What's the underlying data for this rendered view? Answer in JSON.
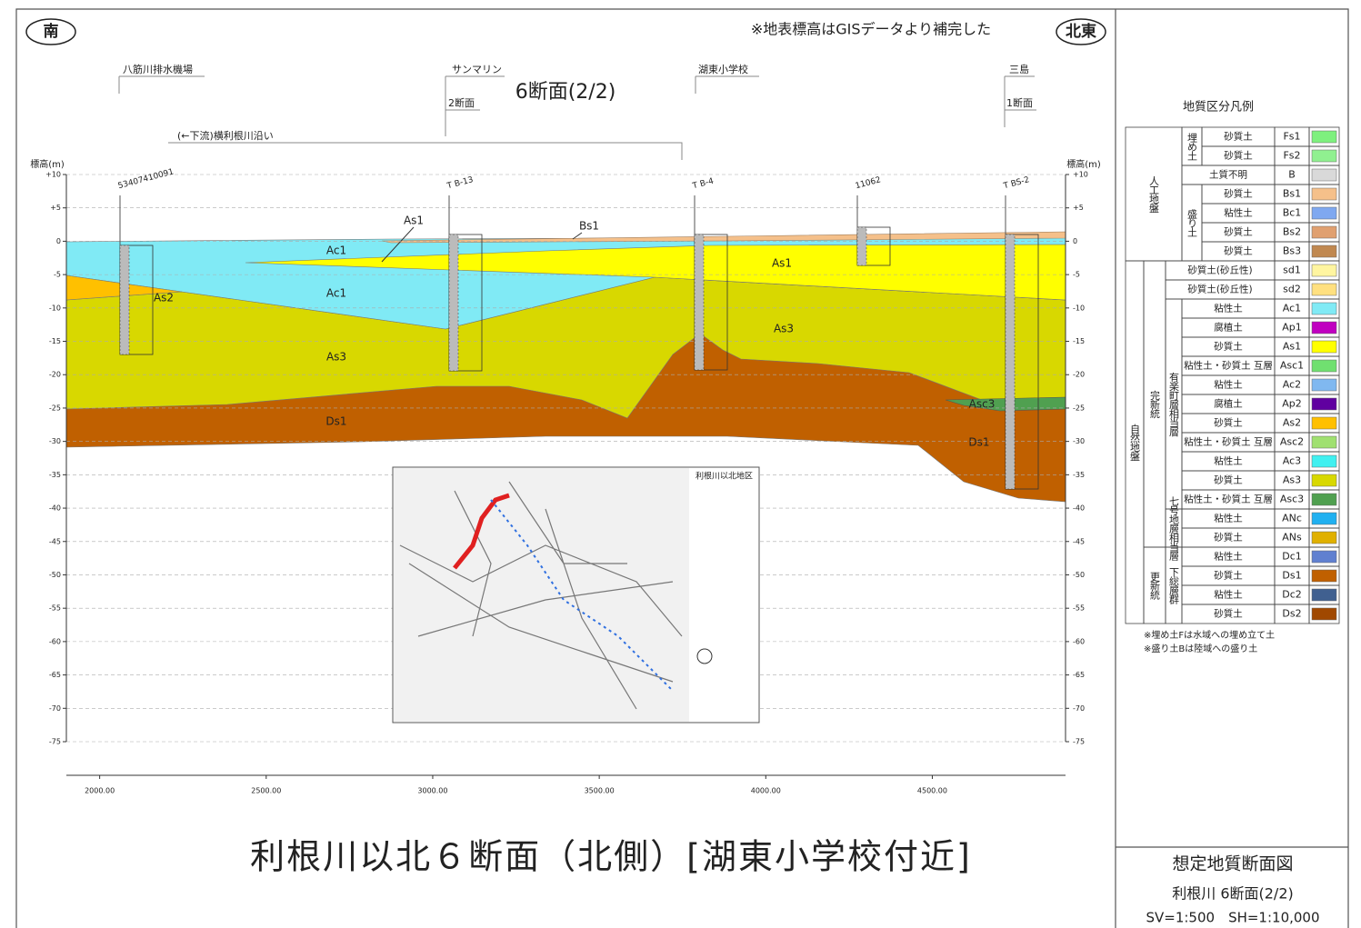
{
  "header": {
    "south": "南",
    "northeast": "北東",
    "note": "※地表標高はGISデータより補完した",
    "section": "6断面(2/2)"
  },
  "landmarks": [
    {
      "label": "八筋川排水機場"
    },
    {
      "label": "サンマリン",
      "sub": "2断面"
    },
    {
      "label": "湖東小学校"
    },
    {
      "label": "三島",
      "sub": "1断面"
    }
  ],
  "river_note": "(←下流)横利根川沿い",
  "axes": {
    "y_label": "標高(m)",
    "ylim": [
      -75,
      10
    ],
    "yticks": [
      {
        "value": 10,
        "label": "+10"
      },
      {
        "value": 5,
        "label": "+5"
      },
      0,
      -5,
      -10,
      -15,
      -20,
      -25,
      -30,
      -35,
      -40,
      -45,
      -50,
      -55,
      -60,
      -65,
      -70,
      -75
    ],
    "xlim": [
      1900,
      4900
    ],
    "xticks": [
      {
        "value": 2000,
        "label": "2000.00"
      },
      {
        "value": 2500,
        "label": "2500.00"
      },
      {
        "value": 3000,
        "label": "3000.00"
      },
      {
        "value": 3500,
        "label": "3500.00"
      },
      {
        "value": 4000,
        "label": "4000.00"
      },
      {
        "value": 4500,
        "label": "4500.00"
      }
    ]
  },
  "boreholes": [
    "53407410091",
    "T B-13",
    "T B-4",
    "11062",
    "T BS-2"
  ],
  "layers": [
    "Ac1",
    "As1",
    "Bs1",
    "Ac1",
    "As2",
    "As3",
    "As1",
    "As3",
    "Asc3",
    "Ds1",
    "Ds1"
  ],
  "map": {
    "title": "利根川以北地区"
  },
  "legend": {
    "title": "地質区分凡例",
    "sections": [
      {
        "label": "人工地盤",
        "blocks": [
          {
            "label": "埋め土",
            "rows": [
              {
                "soil": "砂質土",
                "code": "Fs1",
                "color": "#7ef07e"
              },
              {
                "soil": "砂質土",
                "code": "Fs2",
                "color": "#90f090"
              }
            ]
          },
          {
            "rows": [
              {
                "soil": "土質不明",
                "code": "B",
                "color": "#d9d9d9"
              }
            ]
          },
          {
            "label": "盛り土",
            "rows": [
              {
                "soil": "砂質土",
                "code": "Bs1",
                "color": "#f5c08a"
              },
              {
                "soil": "粘性土",
                "code": "Bc1",
                "color": "#7fa8f0"
              },
              {
                "soil": "砂質土",
                "code": "Bs2",
                "color": "#e0a070"
              },
              {
                "soil": "砂質土",
                "code": "Bs3",
                "color": "#c08850"
              }
            ]
          }
        ]
      },
      {
        "label": "自然地盤",
        "blocks": [
          {
            "label": "完新統",
            "blocks": [
              {
                "rows": [
                  {
                    "soil": "砂質土(砂丘性)",
                    "code": "sd1",
                    "color": "#fff5a0"
                  },
                  {
                    "soil": "砂質土(砂丘性)",
                    "code": "sd2",
                    "color": "#ffe080"
                  }
                ]
              },
              {
                "label": "有楽町層相当層",
                "rows": [
                  {
                    "soil": "粘性土",
                    "code": "Ac1",
                    "color": "#80eaf5"
                  },
                  {
                    "soil": "腐植土",
                    "code": "Ap1",
                    "color": "#c000c0"
                  },
                  {
                    "soil": "砂質土",
                    "code": "As1",
                    "color": "#ffff00"
                  },
                  {
                    "soil": "粘性土・砂質土 互層",
                    "code": "Asc1",
                    "color": "#70e070"
                  },
                  {
                    "soil": "粘性土",
                    "code": "Ac2",
                    "color": "#80b8f0"
                  },
                  {
                    "soil": "腐植土",
                    "code": "Ap2",
                    "color": "#6000a0"
                  },
                  {
                    "soil": "砂質土",
                    "code": "As2",
                    "color": "#ffc000"
                  },
                  {
                    "soil": "粘性土・砂質土 互層",
                    "code": "Asc2",
                    "color": "#a0e070"
                  },
                  {
                    "soil": "粘性土",
                    "code": "Ac3",
                    "color": "#40f0f0"
                  },
                  {
                    "soil": "砂質土",
                    "code": "As3",
                    "color": "#d8d800"
                  },
                  {
                    "soil": "粘性土・砂質土 互層",
                    "code": "Asc3",
                    "color": "#50a050"
                  }
                ]
              },
              {
                "label": "七号地層相当層",
                "rows": [
                  {
                    "soil": "粘性土",
                    "code": "ANc",
                    "color": "#20b0f0"
                  },
                  {
                    "soil": "砂質土",
                    "code": "ANs",
                    "color": "#e0b000"
                  }
                ]
              }
            ]
          },
          {
            "label": "更新統",
            "blocks": [
              {
                "label": "下総層群",
                "rows": [
                  {
                    "soil": "粘性土",
                    "code": "Dc1",
                    "color": "#6080d0"
                  },
                  {
                    "soil": "砂質土",
                    "code": "Ds1",
                    "color": "#c06000"
                  },
                  {
                    "soil": "粘性土",
                    "code": "Dc2",
                    "color": "#406090"
                  },
                  {
                    "soil": "砂質土",
                    "code": "Ds2",
                    "color": "#a04800"
                  }
                ]
              }
            ]
          }
        ]
      }
    ],
    "notes": [
      "※埋め土Fは水域への埋め立て土",
      "※盛り土Bは陸域への盛り土"
    ]
  },
  "title": "利根川以北６断面（北側）[湖東小学校付近]",
  "title_block": {
    "name": "想定地質断面図",
    "section": "利根川 6断面(2/2)",
    "scale": "SV=1:500　SH=1:10,000"
  }
}
